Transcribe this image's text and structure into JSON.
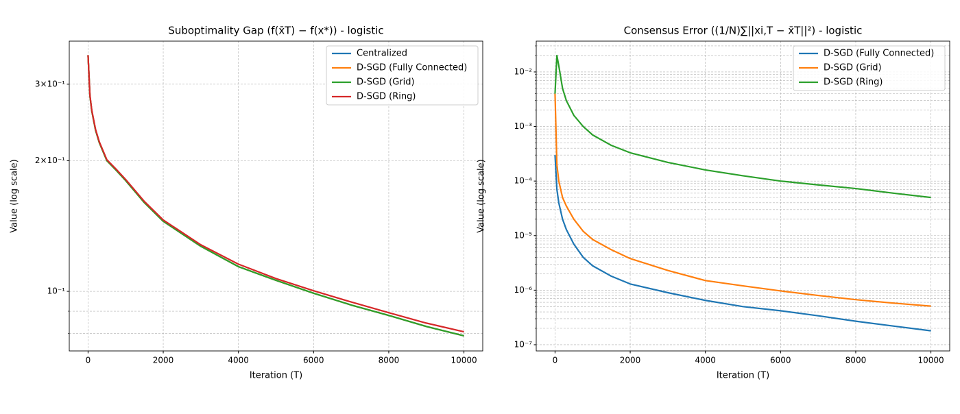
{
  "chart_data": [
    {
      "type": "line",
      "title": "Suboptimality Gap (f(x̄T) − f(x*)) - logistic",
      "xlabel": "Iteration (T)",
      "ylabel": "Value (log scale)",
      "x": [
        0,
        50,
        100,
        200,
        300,
        500,
        750,
        1000,
        1500,
        2000,
        3000,
        4000,
        5000,
        6000,
        7000,
        8000,
        9000,
        10000
      ],
      "series": [
        {
          "name": "Centralized",
          "color": "#1f77b4",
          "values": [
            0.35,
            0.282,
            0.26,
            0.235,
            0.22,
            0.2,
            0.19,
            0.18,
            0.16,
            0.145,
            0.127,
            0.114,
            0.106,
            0.099,
            0.093,
            0.088,
            0.083,
            0.079
          ]
        },
        {
          "name": "D-SGD (Fully Connected)",
          "color": "#ff7f0e",
          "values": [
            0.35,
            0.282,
            0.26,
            0.235,
            0.22,
            0.2,
            0.19,
            0.18,
            0.16,
            0.145,
            0.127,
            0.114,
            0.106,
            0.099,
            0.093,
            0.088,
            0.083,
            0.079
          ]
        },
        {
          "name": "D-SGD (Grid)",
          "color": "#2ca02c",
          "values": [
            0.35,
            0.282,
            0.26,
            0.235,
            0.22,
            0.2,
            0.19,
            0.18,
            0.16,
            0.145,
            0.127,
            0.114,
            0.106,
            0.099,
            0.093,
            0.088,
            0.083,
            0.079
          ]
        },
        {
          "name": "D-SGD (Ring)",
          "color": "#d62728",
          "values": [
            0.35,
            0.283,
            0.261,
            0.236,
            0.221,
            0.201,
            0.191,
            0.181,
            0.161,
            0.146,
            0.128,
            0.1155,
            0.107,
            0.1003,
            0.0945,
            0.0893,
            0.0845,
            0.0807
          ]
        }
      ],
      "xlim": [
        -500,
        10500
      ],
      "xticks": [
        0,
        2000,
        4000,
        6000,
        8000,
        10000
      ],
      "ylim": [
        0.0729,
        0.377
      ],
      "log_y": true,
      "yticks": [
        {
          "value": 0.1,
          "label": "10⁻¹"
        },
        {
          "value": 0.2,
          "label": "2×10⁻¹"
        },
        {
          "value": 0.3,
          "label": "3×10⁻¹"
        }
      ],
      "yminorticks": [
        0.08,
        0.09
      ],
      "grid": true,
      "legend": "upper right"
    },
    {
      "type": "line",
      "title": "Consensus Error ((1/N)∑||xi,T − x̄T||²) - logistic",
      "xlabel": "Iteration (T)",
      "ylabel": "Value (log scale)",
      "x": [
        0,
        50,
        100,
        200,
        300,
        500,
        750,
        1000,
        1500,
        2000,
        3000,
        4000,
        5000,
        6000,
        7000,
        8000,
        9000,
        10000
      ],
      "series": [
        {
          "name": "D-SGD (Fully Connected)",
          "color": "#1f77b4",
          "values": [
            0.0003,
            7e-05,
            4e-05,
            2e-05,
            1.3e-05,
            7e-06,
            4e-06,
            2.8e-06,
            1.8e-06,
            1.3e-06,
            9e-07,
            6.5e-07,
            5e-07,
            4.2e-07,
            3.4e-07,
            2.7e-07,
            2.2e-07,
            1.8e-07
          ]
        },
        {
          "name": "D-SGD (Grid)",
          "color": "#ff7f0e",
          "values": [
            0.004,
            0.0002,
            0.0001,
            5e-05,
            3.5e-05,
            2e-05,
            1.2e-05,
            8.5e-06,
            5.5e-06,
            3.8e-06,
            2.3e-06,
            1.5e-06,
            1.2e-06,
            9.7e-07,
            8e-07,
            6.7e-07,
            5.8e-07,
            5.1e-07
          ]
        },
        {
          "name": "D-SGD (Ring)",
          "color": "#2ca02c",
          "values": [
            0.004,
            0.02,
            0.013,
            0.005,
            0.003,
            0.0016,
            0.001,
            0.0007,
            0.00045,
            0.00033,
            0.00022,
            0.00016,
            0.000125,
            0.0001,
            8.5e-05,
            7.3e-05,
            6e-05,
            5e-05
          ]
        }
      ],
      "xlim": [
        -500,
        10500
      ],
      "xticks": [
        0,
        2000,
        4000,
        6000,
        8000,
        10000
      ],
      "ylim": [
        7.7e-08,
        0.0367
      ],
      "log_y": true,
      "yticks": [
        {
          "value": 1e-07,
          "label": "10⁻⁷"
        },
        {
          "value": 1e-06,
          "label": "10⁻⁶"
        },
        {
          "value": 1e-05,
          "label": "10⁻⁵"
        },
        {
          "value": 0.0001,
          "label": "10⁻⁴"
        },
        {
          "value": 0.001,
          "label": "10⁻³"
        },
        {
          "value": 0.01,
          "label": "10⁻²"
        }
      ],
      "yminorticks": [
        2e-07,
        3e-07,
        4e-07,
        5e-07,
        6e-07,
        7e-07,
        8e-07,
        9e-07,
        2e-06,
        3e-06,
        4e-06,
        5e-06,
        6e-06,
        7e-06,
        8e-06,
        9e-06,
        2e-05,
        3e-05,
        4e-05,
        5e-05,
        6e-05,
        7e-05,
        8e-05,
        9e-05,
        0.0002,
        0.0003,
        0.0004,
        0.0005,
        0.0006,
        0.0007,
        0.0008,
        0.0009,
        0.002,
        0.003,
        0.004,
        0.005,
        0.006,
        0.007,
        0.008,
        0.009,
        0.02,
        0.03
      ],
      "grid": true,
      "legend": "upper right"
    }
  ]
}
